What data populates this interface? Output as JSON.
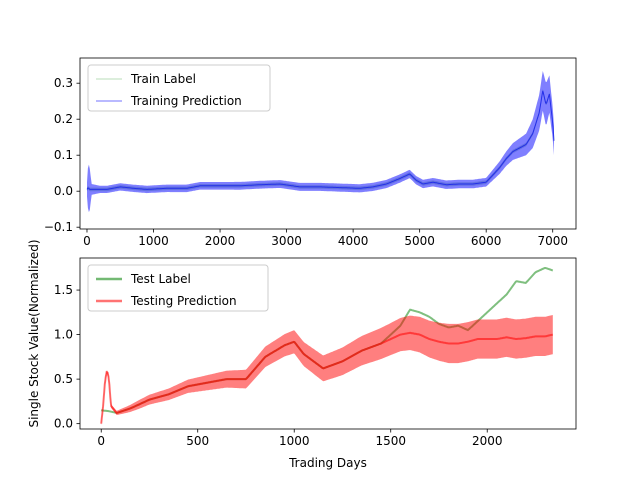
{
  "chart_data": [
    {
      "type": "line",
      "xlabel": "",
      "ylabel": "",
      "xlim": [
        -105,
        7350
      ],
      "ylim": [
        -0.105,
        0.37
      ],
      "xticks": [
        0,
        1000,
        2000,
        3000,
        4000,
        5000,
        6000,
        7000
      ],
      "yticks": [
        -0.1,
        0.0,
        0.1,
        0.2,
        0.3
      ],
      "ytick_labels": [
        "−0.1",
        "0.0",
        "0.1",
        "0.2",
        "0.3"
      ],
      "legend_position": "upper-left",
      "series": [
        {
          "name": "Train Label",
          "color": "#7fbf7f",
          "points": [
            [
              0,
              0.005
            ],
            [
              20,
              0.01
            ],
            [
              40,
              0.005
            ],
            [
              100,
              0.005
            ],
            [
              300,
              0.005
            ],
            [
              500,
              0.012
            ],
            [
              700,
              0.008
            ],
            [
              900,
              0.005
            ],
            [
              1200,
              0.008
            ],
            [
              1500,
              0.008
            ],
            [
              1700,
              0.015
            ],
            [
              2000,
              0.015
            ],
            [
              2300,
              0.015
            ],
            [
              2600,
              0.018
            ],
            [
              2900,
              0.02
            ],
            [
              3200,
              0.012
            ],
            [
              3500,
              0.012
            ],
            [
              3800,
              0.01
            ],
            [
              4100,
              0.008
            ],
            [
              4300,
              0.012
            ],
            [
              4500,
              0.02
            ],
            [
              4700,
              0.035
            ],
            [
              4850,
              0.048
            ],
            [
              4950,
              0.03
            ],
            [
              5050,
              0.02
            ],
            [
              5200,
              0.025
            ],
            [
              5400,
              0.018
            ],
            [
              5600,
              0.02
            ],
            [
              5800,
              0.02
            ],
            [
              6000,
              0.025
            ],
            [
              6100,
              0.045
            ],
            [
              6200,
              0.065
            ],
            [
              6300,
              0.09
            ],
            [
              6400,
              0.11
            ],
            [
              6500,
              0.12
            ],
            [
              6600,
              0.13
            ],
            [
              6700,
              0.16
            ],
            [
              6800,
              0.22
            ],
            [
              6850,
              0.28
            ],
            [
              6900,
              0.24
            ],
            [
              6950,
              0.27
            ],
            [
              7000,
              0.19
            ],
            [
              7020,
              0.14
            ]
          ],
          "band_halfwidth": [
            [
              0,
              0.005
            ],
            [
              7020,
              0.005
            ]
          ]
        },
        {
          "name": "Training Prediction",
          "color": "#0000ff",
          "points": [
            [
              0,
              0.005
            ],
            [
              20,
              0.01
            ],
            [
              40,
              0.005
            ],
            [
              100,
              0.005
            ],
            [
              300,
              0.005
            ],
            [
              500,
              0.012
            ],
            [
              700,
              0.008
            ],
            [
              900,
              0.005
            ],
            [
              1200,
              0.008
            ],
            [
              1500,
              0.008
            ],
            [
              1700,
              0.015
            ],
            [
              2000,
              0.015
            ],
            [
              2300,
              0.015
            ],
            [
              2600,
              0.018
            ],
            [
              2900,
              0.02
            ],
            [
              3200,
              0.012
            ],
            [
              3500,
              0.012
            ],
            [
              3800,
              0.01
            ],
            [
              4100,
              0.008
            ],
            [
              4300,
              0.012
            ],
            [
              4500,
              0.02
            ],
            [
              4700,
              0.035
            ],
            [
              4850,
              0.048
            ],
            [
              4950,
              0.03
            ],
            [
              5050,
              0.02
            ],
            [
              5200,
              0.025
            ],
            [
              5400,
              0.018
            ],
            [
              5600,
              0.02
            ],
            [
              5800,
              0.02
            ],
            [
              6000,
              0.025
            ],
            [
              6100,
              0.045
            ],
            [
              6200,
              0.065
            ],
            [
              6300,
              0.09
            ],
            [
              6400,
              0.11
            ],
            [
              6500,
              0.12
            ],
            [
              6600,
              0.13
            ],
            [
              6700,
              0.16
            ],
            [
              6800,
              0.22
            ],
            [
              6850,
              0.28
            ],
            [
              6900,
              0.24
            ],
            [
              6950,
              0.27
            ],
            [
              7000,
              0.19
            ],
            [
              7020,
              0.14
            ]
          ],
          "band_halfwidth": [
            [
              0,
              0.02
            ],
            [
              20,
              0.07
            ],
            [
              40,
              0.06
            ],
            [
              70,
              0.015
            ],
            [
              200,
              0.01
            ],
            [
              6000,
              0.012
            ],
            [
              6300,
              0.02
            ],
            [
              6600,
              0.03
            ],
            [
              6800,
              0.05
            ],
            [
              6900,
              0.06
            ],
            [
              7020,
              0.04
            ]
          ]
        }
      ]
    },
    {
      "type": "line",
      "xlabel": "Trading Days",
      "ylabel": "Single Stock Value(Normalized)",
      "xlim": [
        -110,
        2460
      ],
      "ylim": [
        -0.06,
        1.86
      ],
      "xticks": [
        0,
        500,
        1000,
        1500,
        2000
      ],
      "yticks": [
        0.0,
        0.5,
        1.0,
        1.5
      ],
      "ytick_labels": [
        "0.0",
        "0.5",
        "1.0",
        "1.5"
      ],
      "legend_position": "upper-left",
      "series": [
        {
          "name": "Test Label",
          "color": "#008000",
          "points": [
            [
              0,
              0.15
            ],
            [
              40,
              0.14
            ],
            [
              80,
              0.12
            ],
            [
              150,
              0.17
            ],
            [
              250,
              0.27
            ],
            [
              350,
              0.33
            ],
            [
              450,
              0.42
            ],
            [
              550,
              0.46
            ],
            [
              650,
              0.5
            ],
            [
              750,
              0.5
            ],
            [
              850,
              0.75
            ],
            [
              950,
              0.88
            ],
            [
              1000,
              0.92
            ],
            [
              1050,
              0.78
            ],
            [
              1100,
              0.7
            ],
            [
              1150,
              0.62
            ],
            [
              1250,
              0.7
            ],
            [
              1350,
              0.82
            ],
            [
              1450,
              0.9
            ],
            [
              1550,
              1.1
            ],
            [
              1600,
              1.28
            ],
            [
              1650,
              1.25
            ],
            [
              1700,
              1.2
            ],
            [
              1750,
              1.12
            ],
            [
              1800,
              1.08
            ],
            [
              1850,
              1.1
            ],
            [
              1900,
              1.05
            ],
            [
              1950,
              1.15
            ],
            [
              2000,
              1.25
            ],
            [
              2050,
              1.35
            ],
            [
              2100,
              1.45
            ],
            [
              2150,
              1.6
            ],
            [
              2200,
              1.58
            ],
            [
              2250,
              1.7
            ],
            [
              2300,
              1.75
            ],
            [
              2340,
              1.72
            ]
          ],
          "band_halfwidth": [
            [
              0,
              0.0
            ],
            [
              2340,
              0.0
            ]
          ]
        },
        {
          "name": "Testing Prediction",
          "color": "#ff0000",
          "points": [
            [
              0,
              0.0
            ],
            [
              10,
              0.2
            ],
            [
              20,
              0.48
            ],
            [
              30,
              0.6
            ],
            [
              40,
              0.5
            ],
            [
              50,
              0.2
            ],
            [
              80,
              0.12
            ],
            [
              150,
              0.17
            ],
            [
              250,
              0.27
            ],
            [
              350,
              0.33
            ],
            [
              450,
              0.42
            ],
            [
              550,
              0.46
            ],
            [
              650,
              0.5
            ],
            [
              750,
              0.5
            ],
            [
              850,
              0.75
            ],
            [
              950,
              0.88
            ],
            [
              1000,
              0.92
            ],
            [
              1050,
              0.78
            ],
            [
              1100,
              0.7
            ],
            [
              1150,
              0.62
            ],
            [
              1250,
              0.7
            ],
            [
              1350,
              0.82
            ],
            [
              1450,
              0.9
            ],
            [
              1550,
              1.0
            ],
            [
              1600,
              1.02
            ],
            [
              1650,
              1.0
            ],
            [
              1700,
              0.95
            ],
            [
              1750,
              0.92
            ],
            [
              1800,
              0.9
            ],
            [
              1850,
              0.9
            ],
            [
              1900,
              0.92
            ],
            [
              1950,
              0.95
            ],
            [
              2000,
              0.95
            ],
            [
              2050,
              0.95
            ],
            [
              2100,
              0.97
            ],
            [
              2150,
              0.95
            ],
            [
              2200,
              0.96
            ],
            [
              2250,
              0.98
            ],
            [
              2300,
              0.98
            ],
            [
              2340,
              1.0
            ]
          ],
          "band_halfwidth": [
            [
              0,
              0.02
            ],
            [
              60,
              0.02
            ],
            [
              200,
              0.05
            ],
            [
              500,
              0.08
            ],
            [
              900,
              0.12
            ],
            [
              1200,
              0.15
            ],
            [
              1500,
              0.18
            ],
            [
              1800,
              0.22
            ],
            [
              2340,
              0.22
            ]
          ]
        }
      ]
    }
  ]
}
